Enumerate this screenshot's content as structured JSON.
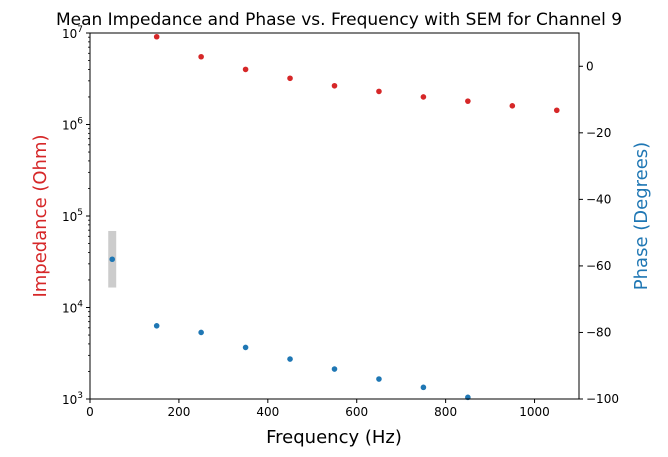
{
  "chart_data": {
    "type": "scatter",
    "title": "Mean Impedance and Phase vs. Frequency with SEM for Channel 9",
    "xlabel": "Frequency (Hz)",
    "ylabel_left": "Impedance (Ohm)",
    "ylabel_right": "Phase (Degrees)",
    "xlim": [
      0,
      1100
    ],
    "xticks": [
      0,
      200,
      400,
      600,
      800,
      1000
    ],
    "ylim_left": [
      1000,
      10000000
    ],
    "yscale_left": "log",
    "yticks_left": [
      {
        "value": 1000,
        "base": "10",
        "exp": "3"
      },
      {
        "value": 10000,
        "base": "10",
        "exp": "4"
      },
      {
        "value": 100000,
        "base": "10",
        "exp": "5"
      },
      {
        "value": 1000000,
        "base": "10",
        "exp": "6"
      },
      {
        "value": 10000000,
        "base": "10",
        "exp": "7"
      }
    ],
    "ylim_right": [
      -100,
      10
    ],
    "yticks_right": [
      0,
      -20,
      -40,
      -60,
      -80,
      -100
    ],
    "grid": false,
    "legend": "none",
    "colors": {
      "impedance": "#d62728",
      "phase": "#1f77b4",
      "error_band": "#cccccc"
    },
    "series": [
      {
        "axis": "left",
        "color": "#d62728",
        "x": [
          150,
          250,
          350,
          450,
          550,
          650,
          750,
          850,
          950,
          1050
        ],
        "y": [
          9100000,
          5500000,
          4000000,
          3200000,
          2650000,
          2300000,
          2000000,
          1800000,
          1600000,
          1430000
        ]
      },
      {
        "axis": "right",
        "color": "#1f77b4",
        "x": [
          50,
          150,
          250,
          350,
          450,
          550,
          650,
          750,
          850
        ],
        "y": [
          -58,
          -78,
          -80,
          -84.5,
          -88,
          -91,
          -94,
          -96.5,
          -99.5
        ],
        "sem_lower": [
          -66.5,
          -78,
          -80,
          -84.5,
          -88,
          -91,
          -94,
          -96.5,
          -99.5
        ],
        "sem_upper": [
          -49.5,
          -78,
          -80,
          -84.5,
          -88,
          -91,
          -94,
          -96.5,
          -99.5
        ]
      }
    ]
  }
}
